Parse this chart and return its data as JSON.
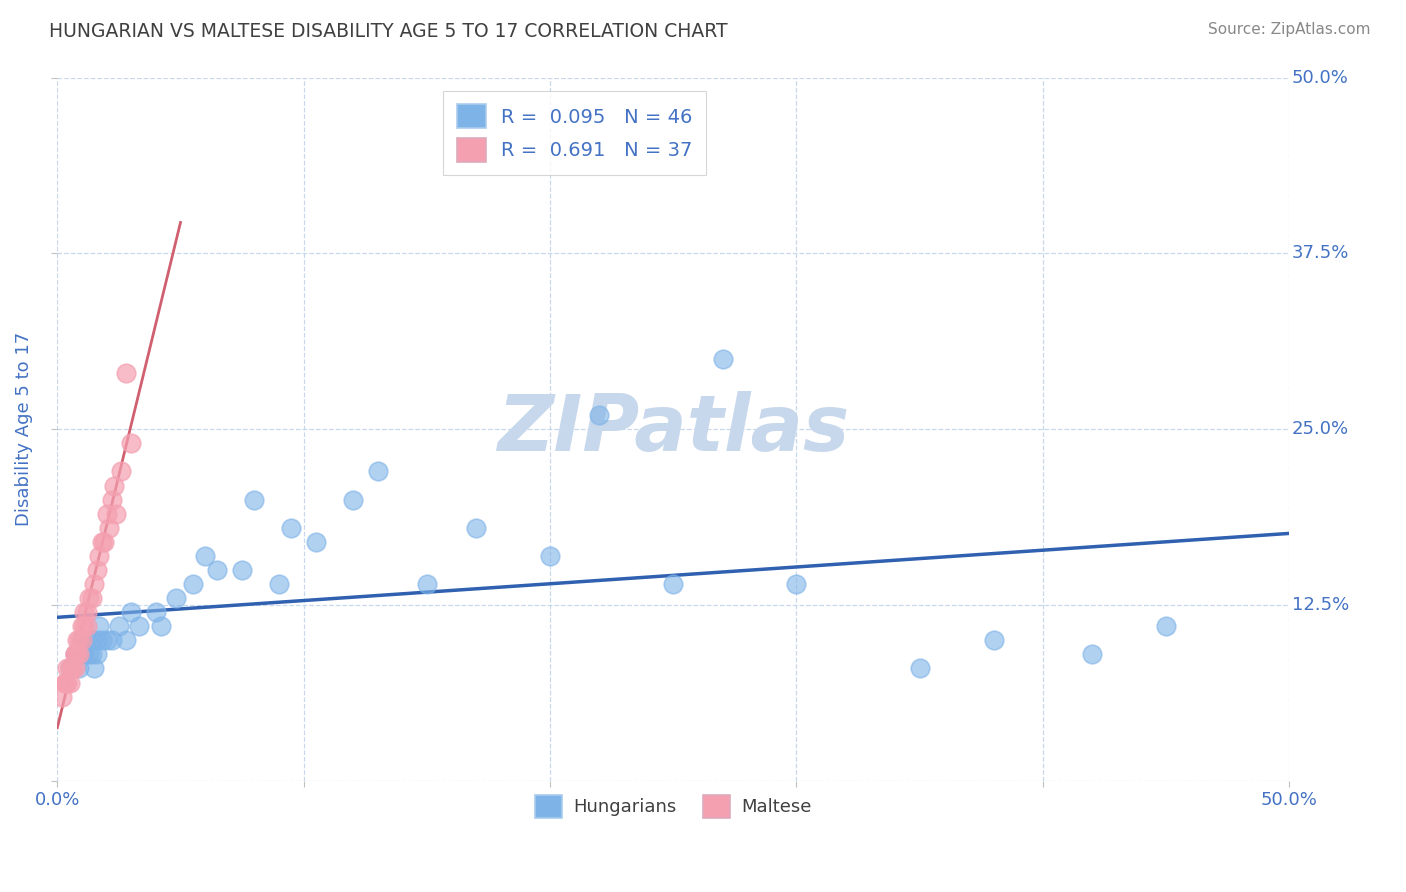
{
  "title": "HUNGARIAN VS MALTESE DISABILITY AGE 5 TO 17 CORRELATION CHART",
  "source_text": "Source: ZipAtlas.com",
  "ylabel": "Disability Age 5 to 17",
  "xlim": [
    0.0,
    0.5
  ],
  "ylim": [
    0.0,
    0.5
  ],
  "xticks": [
    0.0,
    0.1,
    0.2,
    0.3,
    0.4,
    0.5
  ],
  "yticks": [
    0.0,
    0.125,
    0.25,
    0.375,
    0.5
  ],
  "xticklabels": [
    "0.0%",
    "",
    "",
    "",
    "",
    "50.0%"
  ],
  "ytick_right_labels": [
    "",
    "12.5%",
    "25.0%",
    "37.5%",
    "50.0%"
  ],
  "hungarian_R": 0.095,
  "hungarian_N": 46,
  "maltese_R": 0.691,
  "maltese_N": 37,
  "blue_color": "#7EB3E8",
  "pink_color": "#F4A0B0",
  "blue_line_color": "#3060B0",
  "pink_line_color": "#D06070",
  "watermark_color": "#C8D8EC",
  "title_color": "#404040",
  "axis_label_color": "#4472C4",
  "tick_color": "#4472C4",
  "legend_color": "#4472C4",
  "hungarian_x": [
    0.005,
    0.007,
    0.008,
    0.009,
    0.01,
    0.01,
    0.011,
    0.012,
    0.013,
    0.014,
    0.014,
    0.015,
    0.016,
    0.016,
    0.017,
    0.018,
    0.02,
    0.022,
    0.025,
    0.028,
    0.03,
    0.033,
    0.04,
    0.042,
    0.048,
    0.055,
    0.06,
    0.065,
    0.075,
    0.08,
    0.09,
    0.095,
    0.105,
    0.12,
    0.13,
    0.15,
    0.17,
    0.2,
    0.22,
    0.25,
    0.27,
    0.3,
    0.35,
    0.38,
    0.42,
    0.45
  ],
  "hungarian_y": [
    0.08,
    0.09,
    0.09,
    0.08,
    0.09,
    0.1,
    0.09,
    0.1,
    0.09,
    0.09,
    0.1,
    0.08,
    0.09,
    0.1,
    0.11,
    0.1,
    0.1,
    0.1,
    0.11,
    0.1,
    0.12,
    0.11,
    0.12,
    0.11,
    0.13,
    0.14,
    0.16,
    0.15,
    0.15,
    0.2,
    0.14,
    0.18,
    0.17,
    0.2,
    0.22,
    0.14,
    0.18,
    0.16,
    0.26,
    0.14,
    0.3,
    0.14,
    0.08,
    0.1,
    0.09,
    0.11
  ],
  "maltese_x": [
    0.002,
    0.003,
    0.003,
    0.004,
    0.004,
    0.005,
    0.005,
    0.006,
    0.006,
    0.007,
    0.007,
    0.007,
    0.008,
    0.008,
    0.009,
    0.009,
    0.01,
    0.01,
    0.011,
    0.011,
    0.012,
    0.012,
    0.013,
    0.014,
    0.015,
    0.016,
    0.017,
    0.018,
    0.019,
    0.02,
    0.021,
    0.022,
    0.023,
    0.024,
    0.026,
    0.028,
    0.03
  ],
  "maltese_y": [
    0.06,
    0.07,
    0.07,
    0.07,
    0.08,
    0.07,
    0.08,
    0.08,
    0.08,
    0.08,
    0.09,
    0.09,
    0.09,
    0.1,
    0.09,
    0.1,
    0.1,
    0.11,
    0.11,
    0.12,
    0.11,
    0.12,
    0.13,
    0.13,
    0.14,
    0.15,
    0.16,
    0.17,
    0.17,
    0.19,
    0.18,
    0.2,
    0.21,
    0.19,
    0.22,
    0.29,
    0.24
  ]
}
